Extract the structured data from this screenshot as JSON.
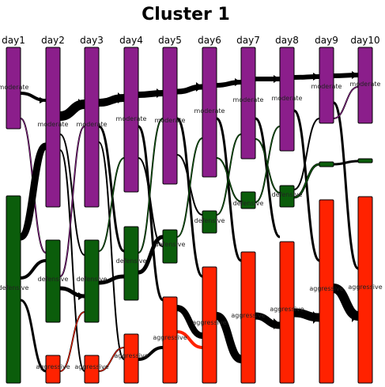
{
  "title": "Cluster 1",
  "days": [
    "day1",
    "day2",
    "day3",
    "day4",
    "day5",
    "day6",
    "day7",
    "day8",
    "day9",
    "day10"
  ],
  "states": [
    "moderate",
    "defensive",
    "aggressive"
  ],
  "colors": {
    "moderate": "#8B1E8B",
    "defensive": "#0B5D0B",
    "aggressive": "#FF2200",
    "flow": "#000000",
    "stroke": "#000000"
  },
  "nodes": [
    {
      "day": 0,
      "state": "moderate",
      "label": "moderate",
      "show_label": true
    },
    {
      "day": 0,
      "state": "defensive",
      "label": "defensive",
      "show_label": true
    },
    {
      "day": 1,
      "state": "moderate",
      "label": "moderate",
      "show_label": true
    },
    {
      "day": 1,
      "state": "defensive",
      "label": "defensive",
      "show_label": true
    },
    {
      "day": 1,
      "state": "aggressive",
      "label": "aggressive",
      "show_label": true
    },
    {
      "day": 2,
      "state": "moderate",
      "label": "moderate",
      "show_label": true
    },
    {
      "day": 2,
      "state": "defensive",
      "label": "defensive",
      "show_label": true
    },
    {
      "day": 2,
      "state": "aggressive",
      "label": "aggressive",
      "show_label": true
    },
    {
      "day": 3,
      "state": "moderate",
      "label": "moderate",
      "show_label": true
    },
    {
      "day": 3,
      "state": "defensive",
      "label": "defensive",
      "show_label": true
    },
    {
      "day": 3,
      "state": "aggressive",
      "label": "aggressive",
      "show_label": true
    },
    {
      "day": 4,
      "state": "moderate",
      "label": "moderate",
      "show_label": true
    },
    {
      "day": 4,
      "state": "defensive",
      "label": "defensive",
      "show_label": true
    },
    {
      "day": 4,
      "state": "aggressive",
      "label": "aggressive",
      "show_label": true
    },
    {
      "day": 5,
      "state": "moderate",
      "label": "moderate",
      "show_label": true
    },
    {
      "day": 5,
      "state": "defensive",
      "label": "defensive",
      "show_label": true
    },
    {
      "day": 5,
      "state": "aggressive",
      "label": "aggressive",
      "show_label": true
    },
    {
      "day": 6,
      "state": "moderate",
      "label": "moderate",
      "show_label": true
    },
    {
      "day": 6,
      "state": "defensive",
      "label": "defensive",
      "show_label": true
    },
    {
      "day": 6,
      "state": "aggressive",
      "label": "aggressive",
      "show_label": true
    },
    {
      "day": 7,
      "state": "moderate",
      "label": "moderate",
      "show_label": true
    },
    {
      "day": 7,
      "state": "defensive",
      "label": "defensive",
      "show_label": true
    },
    {
      "day": 7,
      "state": "aggressive",
      "label": "aggressive",
      "show_label": true
    },
    {
      "day": 8,
      "state": "moderate",
      "label": "moderate",
      "show_label": true
    },
    {
      "day": 8,
      "state": "defensive",
      "label": "defensive",
      "show_label": false
    },
    {
      "day": 8,
      "state": "aggressive",
      "label": "aggressive",
      "show_label": true
    },
    {
      "day": 9,
      "state": "moderate",
      "label": "moderate",
      "show_label": true
    },
    {
      "day": 9,
      "state": "defensive",
      "label": "defensive",
      "show_label": false
    },
    {
      "day": 9,
      "state": "aggressive",
      "label": "aggressive",
      "show_label": true
    }
  ]
}
